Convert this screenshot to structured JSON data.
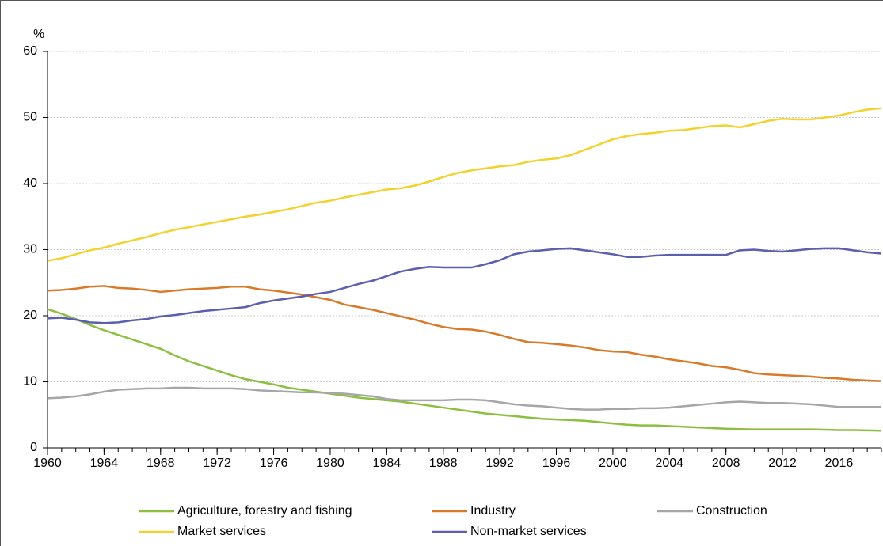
{
  "chart_data": {
    "type": "line",
    "y_label": "%",
    "x": [
      1960,
      1961,
      1962,
      1963,
      1964,
      1965,
      1966,
      1967,
      1968,
      1969,
      1970,
      1971,
      1972,
      1973,
      1974,
      1975,
      1976,
      1977,
      1978,
      1979,
      1980,
      1981,
      1982,
      1983,
      1984,
      1985,
      1986,
      1987,
      1988,
      1989,
      1990,
      1991,
      1992,
      1993,
      1994,
      1995,
      1996,
      1997,
      1998,
      1999,
      2000,
      2001,
      2002,
      2003,
      2004,
      2005,
      2006,
      2007,
      2008,
      2009,
      2010,
      2011,
      2012,
      2013,
      2014,
      2015,
      2016,
      2017,
      2018,
      2019
    ],
    "xlim": [
      1960,
      2019
    ],
    "xticks": [
      1960,
      1964,
      1968,
      1972,
      1976,
      1980,
      1984,
      1988,
      1992,
      1996,
      2000,
      2004,
      2008,
      2012,
      2016
    ],
    "ylim": [
      0,
      60
    ],
    "yticks": [
      0,
      10,
      20,
      30,
      40,
      50,
      60
    ],
    "grid": true,
    "legend": "bottom",
    "series": [
      {
        "name": "Agriculture, forestry and fishing",
        "color": "#8cbf3f",
        "values": [
          21.0,
          20.3,
          19.5,
          18.6,
          17.8,
          17.1,
          16.4,
          15.7,
          15.0,
          14.0,
          13.1,
          12.4,
          11.7,
          11.0,
          10.4,
          10.0,
          9.6,
          9.1,
          8.8,
          8.5,
          8.2,
          7.9,
          7.6,
          7.4,
          7.2,
          7.0,
          6.7,
          6.4,
          6.1,
          5.8,
          5.5,
          5.2,
          5.0,
          4.8,
          4.6,
          4.4,
          4.3,
          4.2,
          4.1,
          3.9,
          3.7,
          3.5,
          3.4,
          3.4,
          3.3,
          3.2,
          3.1,
          3.0,
          2.9,
          2.85,
          2.8,
          2.8,
          2.8,
          2.8,
          2.8,
          2.75,
          2.7,
          2.7,
          2.65,
          2.6
        ]
      },
      {
        "name": "Industry",
        "color": "#d97a2b",
        "values": [
          23.8,
          23.9,
          24.1,
          24.4,
          24.5,
          24.2,
          24.1,
          23.9,
          23.6,
          23.8,
          24.0,
          24.1,
          24.2,
          24.4,
          24.4,
          24.0,
          23.8,
          23.5,
          23.2,
          22.8,
          22.4,
          21.7,
          21.3,
          20.9,
          20.4,
          19.9,
          19.4,
          18.8,
          18.3,
          18.0,
          17.9,
          17.6,
          17.1,
          16.5,
          16.0,
          15.9,
          15.7,
          15.5,
          15.2,
          14.8,
          14.6,
          14.5,
          14.1,
          13.8,
          13.4,
          13.1,
          12.8,
          12.4,
          12.2,
          11.8,
          11.3,
          11.1,
          11.0,
          10.9,
          10.8,
          10.6,
          10.5,
          10.3,
          10.2,
          10.1
        ]
      },
      {
        "name": "Construction",
        "color": "#a6a6a6",
        "values": [
          7.5,
          7.6,
          7.8,
          8.1,
          8.5,
          8.8,
          8.9,
          9.0,
          9.0,
          9.1,
          9.1,
          9.0,
          9.0,
          9.0,
          8.9,
          8.7,
          8.6,
          8.5,
          8.4,
          8.4,
          8.3,
          8.2,
          8.0,
          7.8,
          7.4,
          7.2,
          7.2,
          7.2,
          7.2,
          7.3,
          7.3,
          7.2,
          6.9,
          6.6,
          6.4,
          6.3,
          6.1,
          5.9,
          5.8,
          5.8,
          5.9,
          5.9,
          6.0,
          6.0,
          6.1,
          6.3,
          6.5,
          6.7,
          6.9,
          7.0,
          6.9,
          6.8,
          6.8,
          6.7,
          6.6,
          6.4,
          6.2,
          6.2,
          6.2,
          6.2
        ]
      },
      {
        "name": "Market services",
        "color": "#f2d22e",
        "values": [
          28.3,
          28.7,
          29.3,
          29.9,
          30.3,
          30.9,
          31.4,
          31.9,
          32.5,
          33.0,
          33.4,
          33.8,
          34.2,
          34.6,
          35.0,
          35.3,
          35.7,
          36.1,
          36.6,
          37.1,
          37.4,
          37.9,
          38.3,
          38.7,
          39.1,
          39.3,
          39.7,
          40.3,
          41.0,
          41.6,
          42.0,
          42.3,
          42.6,
          42.8,
          43.3,
          43.6,
          43.8,
          44.3,
          45.1,
          45.9,
          46.7,
          47.2,
          47.5,
          47.7,
          48.0,
          48.1,
          48.4,
          48.7,
          48.8,
          48.5,
          49.0,
          49.5,
          49.8,
          49.7,
          49.7,
          50.0,
          50.3,
          50.8,
          51.2,
          51.4
        ]
      },
      {
        "name": "Non-market services",
        "color": "#5b5fae",
        "values": [
          19.6,
          19.7,
          19.4,
          19.0,
          18.9,
          19.0,
          19.3,
          19.5,
          19.9,
          20.1,
          20.4,
          20.7,
          20.9,
          21.1,
          21.3,
          21.9,
          22.3,
          22.6,
          22.9,
          23.3,
          23.6,
          24.2,
          24.8,
          25.3,
          26.0,
          26.7,
          27.1,
          27.4,
          27.3,
          27.3,
          27.3,
          27.8,
          28.4,
          29.3,
          29.7,
          29.9,
          30.1,
          30.2,
          29.9,
          29.6,
          29.3,
          28.9,
          28.9,
          29.1,
          29.2,
          29.2,
          29.2,
          29.2,
          29.2,
          29.9,
          30.0,
          29.8,
          29.7,
          29.9,
          30.1,
          30.2,
          30.2,
          29.9,
          29.6,
          29.4
        ]
      }
    ]
  }
}
